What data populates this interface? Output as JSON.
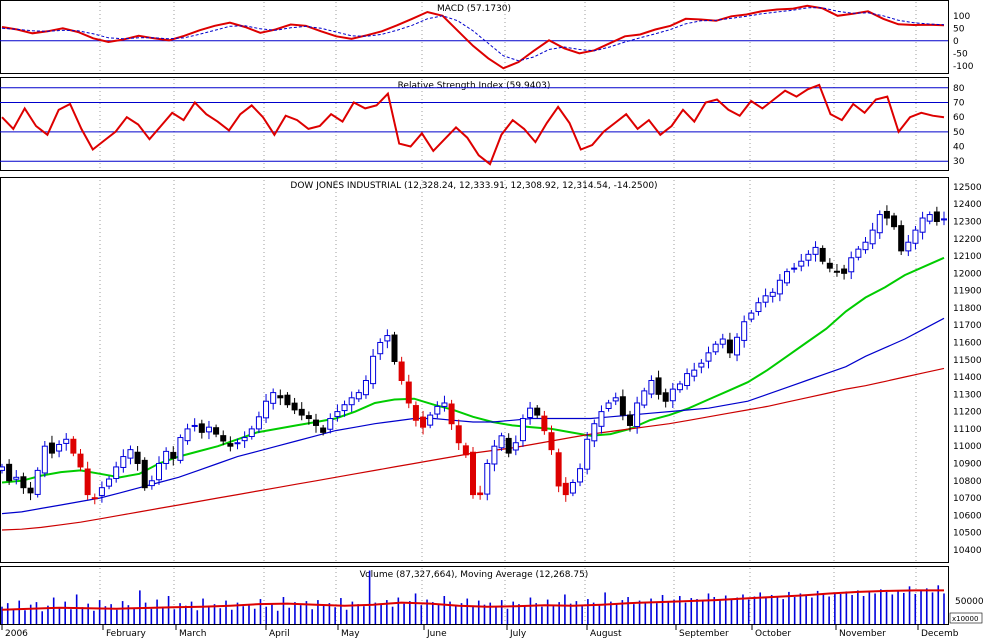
{
  "colors": {
    "background": "#ffffff",
    "price_up": "#0000dd",
    "price_down": "#000000",
    "price_highlight": "#dd0000",
    "ma_short": "#00cc00",
    "ma_mid": "#0000cc",
    "ma_long": "#cc0000",
    "macd": "#dd0000",
    "macd_signal": "#0000cc",
    "rsi": "#dd0000",
    "ref_line": "#0000cc",
    "volume_bar": "#0000dd",
    "volume_ma": "#dd0000"
  },
  "panels": {
    "macd": {
      "title": "MACD (57.1730)"
    },
    "rsi": {
      "title": "Relative Strength Index (59.9403)"
    },
    "price": {
      "title": "DOW JONES INDUSTRIAL (12,328.24, 12,333.91, 12,308.92, 12,314.54, -14.2500)"
    },
    "volume": {
      "title": "Volume (87,327,664), Moving Average (12,268.75)",
      "scale_label": "x10000",
      "tick_label": "50000"
    }
  },
  "chart_data": [
    {
      "type": "line",
      "panel": "macd",
      "title": "MACD (57.1730)",
      "yticks": [
        "100",
        "50",
        "0",
        "-50",
        "-100"
      ],
      "ytick_values": [
        100,
        50,
        0,
        -50,
        -100
      ],
      "ylim": [
        -125,
        155
      ],
      "reference_lines": [
        0
      ],
      "series": [
        {
          "name": "MACD",
          "role": "macd",
          "values": [
            55,
            45,
            30,
            38,
            50,
            35,
            10,
            -5,
            5,
            20,
            10,
            2,
            20,
            42,
            60,
            72,
            55,
            32,
            45,
            65,
            60,
            38,
            18,
            8,
            22,
            38,
            62,
            88,
            115,
            100,
            40,
            -20,
            -70,
            -110,
            -85,
            -40,
            2,
            -30,
            -50,
            -38,
            -10,
            18,
            25,
            45,
            60,
            88,
            85,
            80,
            98,
            105,
            118,
            125,
            128,
            140,
            130,
            100,
            108,
            118,
            88,
            66,
            63,
            64,
            62
          ]
        },
        {
          "name": "Signal",
          "role": "signal",
          "values": [
            50,
            46,
            40,
            38,
            42,
            40,
            28,
            12,
            8,
            12,
            12,
            8,
            12,
            26,
            42,
            58,
            60,
            48,
            42,
            52,
            58,
            50,
            35,
            20,
            18,
            26,
            42,
            62,
            88,
            100,
            80,
            40,
            -10,
            -60,
            -80,
            -65,
            -35,
            -25,
            -35,
            -40,
            -25,
            -5,
            12,
            28,
            45,
            68,
            80,
            82,
            90,
            98,
            108,
            115,
            122,
            132,
            132,
            118,
            110,
            112,
            100,
            82,
            72,
            67,
            64
          ]
        }
      ]
    },
    {
      "type": "line",
      "panel": "rsi",
      "title": "Relative Strength Index (59.9403)",
      "yticks": [
        "80",
        "70",
        "60",
        "50",
        "40",
        "30"
      ],
      "ytick_values": [
        80,
        70,
        60,
        50,
        40,
        30
      ],
      "ylim": [
        24,
        86
      ],
      "reference_lines": [
        80,
        70,
        50,
        30
      ],
      "series": [
        {
          "name": "RSI",
          "role": "rsi",
          "values": [
            60,
            52,
            66,
            54,
            48,
            65,
            69,
            52,
            38,
            44,
            50,
            60,
            55,
            45,
            54,
            63,
            58,
            70,
            62,
            57,
            51,
            62,
            68,
            60,
            48,
            61,
            58,
            52,
            54,
            62,
            57,
            70,
            66,
            68,
            76,
            42,
            40,
            49,
            37,
            45,
            53,
            46,
            34,
            28,
            48,
            58,
            52,
            43,
            56,
            67,
            56,
            38,
            41,
            50,
            56,
            62,
            52,
            58,
            48,
            54,
            65,
            57,
            70,
            72,
            65,
            61,
            71,
            66,
            72,
            78,
            74,
            79,
            82,
            62,
            58,
            69,
            63,
            72,
            74,
            50,
            60,
            63,
            61,
            59.9
          ]
        }
      ]
    },
    {
      "type": "candlestick",
      "panel": "price",
      "title": "DOW JONES INDUSTRIAL (12,328.24, 12,333.91, 12,308.92, 12,314.54, -14.2500)",
      "yticks": [
        "12500",
        "12400",
        "12300",
        "12200",
        "12100",
        "12000",
        "11900",
        "11800",
        "11700",
        "11600",
        "11500",
        "11400",
        "11300",
        "11200",
        "11100",
        "11000",
        "10900",
        "10800",
        "10700",
        "10600",
        "10500",
        "10400"
      ],
      "ytick_values": [
        12500,
        12400,
        12300,
        12200,
        12100,
        12000,
        11900,
        11800,
        11700,
        11600,
        11500,
        11400,
        11300,
        11200,
        11100,
        11000,
        10900,
        10800,
        10700,
        10600,
        10500,
        10400
      ],
      "ylim": [
        10330,
        12540
      ],
      "xlabel_months": [
        "2006",
        "February",
        "March",
        "April",
        "May",
        "June",
        "July",
        "August",
        "September",
        "October",
        "November",
        "Decemb"
      ],
      "close": [
        10880,
        10800,
        10820,
        10760,
        10730,
        10860,
        11000,
        10960,
        11010,
        11040,
        10960,
        10880,
        10720,
        10700,
        10760,
        10810,
        10880,
        10940,
        10980,
        10900,
        10760,
        10800,
        10900,
        10970,
        10930,
        11050,
        11100,
        11120,
        11080,
        11110,
        11070,
        11030,
        11000,
        11020,
        11050,
        11100,
        11170,
        11260,
        11310,
        11280,
        11240,
        11210,
        11180,
        11160,
        11120,
        11080,
        11160,
        11200,
        11240,
        11280,
        11310,
        11380,
        11520,
        11600,
        11640,
        11490,
        11380,
        11250,
        11150,
        11110,
        11180,
        11230,
        11250,
        11130,
        11020,
        10950,
        10720,
        10720,
        10900,
        11000,
        11060,
        10960,
        11020,
        11160,
        11220,
        11180,
        11090,
        10980,
        10770,
        10720,
        10790,
        10870,
        11040,
        11130,
        11200,
        11250,
        11280,
        11180,
        11120,
        11250,
        11320,
        11380,
        11300,
        11260,
        11330,
        11360,
        11420,
        11440,
        11480,
        11540,
        11590,
        11620,
        11540,
        11630,
        11720,
        11770,
        11830,
        11870,
        11890,
        11960,
        12010,
        12030,
        12070,
        12110,
        12150,
        12070,
        12030,
        12010,
        12000,
        12090,
        12140,
        12180,
        12250,
        12340,
        12320,
        12270,
        12130,
        12180,
        12250,
        12320,
        12340,
        12300,
        12315
      ],
      "series": [
        {
          "name": "Moving average (short)",
          "role": "ma_short",
          "values": [
            10790,
            10800,
            10830,
            10850,
            10860,
            10840,
            10820,
            10840,
            10900,
            10940,
            10970,
            11000,
            11040,
            11080,
            11100,
            11120,
            11140,
            11160,
            11200,
            11250,
            11270,
            11275,
            11240,
            11210,
            11170,
            11140,
            11120,
            11110,
            11100,
            11080,
            11060,
            11070,
            11100,
            11150,
            11180,
            11220,
            11270,
            11320,
            11370,
            11440,
            11520,
            11600,
            11680,
            11780,
            11860,
            11920,
            11990,
            12040,
            12090
          ]
        },
        {
          "name": "Moving average (mid)",
          "role": "ma_mid",
          "values": [
            10610,
            10620,
            10640,
            10660,
            10680,
            10700,
            10730,
            10760,
            10790,
            10820,
            10860,
            10900,
            10940,
            10970,
            11000,
            11030,
            11060,
            11090,
            11110,
            11130,
            11145,
            11160,
            11160,
            11150,
            11140,
            11140,
            11150,
            11160,
            11160,
            11160,
            11160,
            11170,
            11180,
            11190,
            11200,
            11210,
            11220,
            11240,
            11260,
            11300,
            11340,
            11380,
            11420,
            11460,
            11520,
            11570,
            11620,
            11680,
            11740
          ]
        },
        {
          "name": "Moving average (long)",
          "role": "ma_long",
          "values": [
            10515,
            10520,
            10530,
            10545,
            10560,
            10580,
            10600,
            10620,
            10640,
            10660,
            10680,
            10700,
            10720,
            10740,
            10760,
            10780,
            10800,
            10820,
            10840,
            10860,
            10880,
            10900,
            10920,
            10940,
            10960,
            10975,
            10990,
            11010,
            11030,
            11050,
            11070,
            11085,
            11100,
            11115,
            11130,
            11150,
            11170,
            11190,
            11210,
            11230,
            11255,
            11280,
            11305,
            11330,
            11350,
            11375,
            11400,
            11425,
            11450
          ]
        }
      ]
    },
    {
      "type": "bar",
      "panel": "volume",
      "title": "Volume (87,327,664), Moving Average (12,268.75)",
      "yticks": [
        "50000"
      ],
      "ytick_values": [
        50000
      ],
      "unit_label": "x10000",
      "ylim": [
        0,
        110000
      ],
      "values": [
        34000,
        41000,
        30000,
        46000,
        27000,
        38000,
        43000,
        25000,
        36000,
        52000,
        31000,
        44000,
        29000,
        58000,
        33000,
        40000,
        26000,
        47000,
        35000,
        39000,
        28000,
        45000,
        37000,
        32000,
        66000,
        42000,
        30000,
        48000,
        34000,
        55000,
        29000,
        41000,
        36000,
        44000,
        27000,
        50000,
        33000,
        39000,
        31000,
        46000,
        28000,
        42000,
        35000,
        38000,
        30000,
        49000,
        34000,
        40000,
        26000,
        53000,
        32000,
        43000,
        37000,
        45000,
        29000,
        47000,
        36000,
        41000,
        33000,
        51000,
        28000,
        44000,
        39000,
        35000,
        105000,
        42000,
        38000,
        47000,
        34000,
        52000,
        40000,
        45000,
        60000,
        37000,
        48000,
        43000,
        39000,
        55000,
        44000,
        36000,
        41000,
        50000,
        35000,
        46000,
        38000,
        42000,
        33000,
        47000,
        30000,
        44000,
        39000,
        36000,
        52000,
        41000,
        34000,
        48000,
        37000,
        43000,
        58000,
        40000,
        45000,
        35000,
        49000,
        42000,
        38000,
        62000,
        44000,
        40000,
        47000,
        53000,
        39000,
        46000,
        43000,
        50000,
        41000,
        57000,
        45000,
        48000,
        55000,
        42000,
        51000,
        49000,
        46000,
        60000,
        53000,
        47000,
        56000,
        50000,
        52000,
        58000,
        48000,
        54000,
        62000,
        51000,
        57000,
        55000,
        49000,
        63000,
        53000,
        60000,
        56000,
        52000,
        65000,
        58000,
        54000,
        61000,
        59000,
        64000,
        57000,
        66000,
        55000,
        62000,
        60000,
        68000,
        63000,
        58000,
        64000,
        61000,
        74000,
        59000,
        66000,
        70000,
        62000,
        76000,
        60000
      ],
      "series": [
        {
          "name": "Moving Average",
          "role": "volume_ma",
          "values": [
            28000,
            30000,
            32000,
            31000,
            30000,
            31500,
            33000,
            34000,
            36000,
            39000,
            40000,
            38000,
            36000,
            38000,
            42000,
            40000,
            36000,
            34000,
            35000,
            37000,
            36000,
            38000,
            41000,
            43000,
            45000,
            47000,
            50000,
            53000,
            56000,
            60000,
            63000,
            65000,
            66000,
            66000
          ]
        }
      ]
    }
  ]
}
